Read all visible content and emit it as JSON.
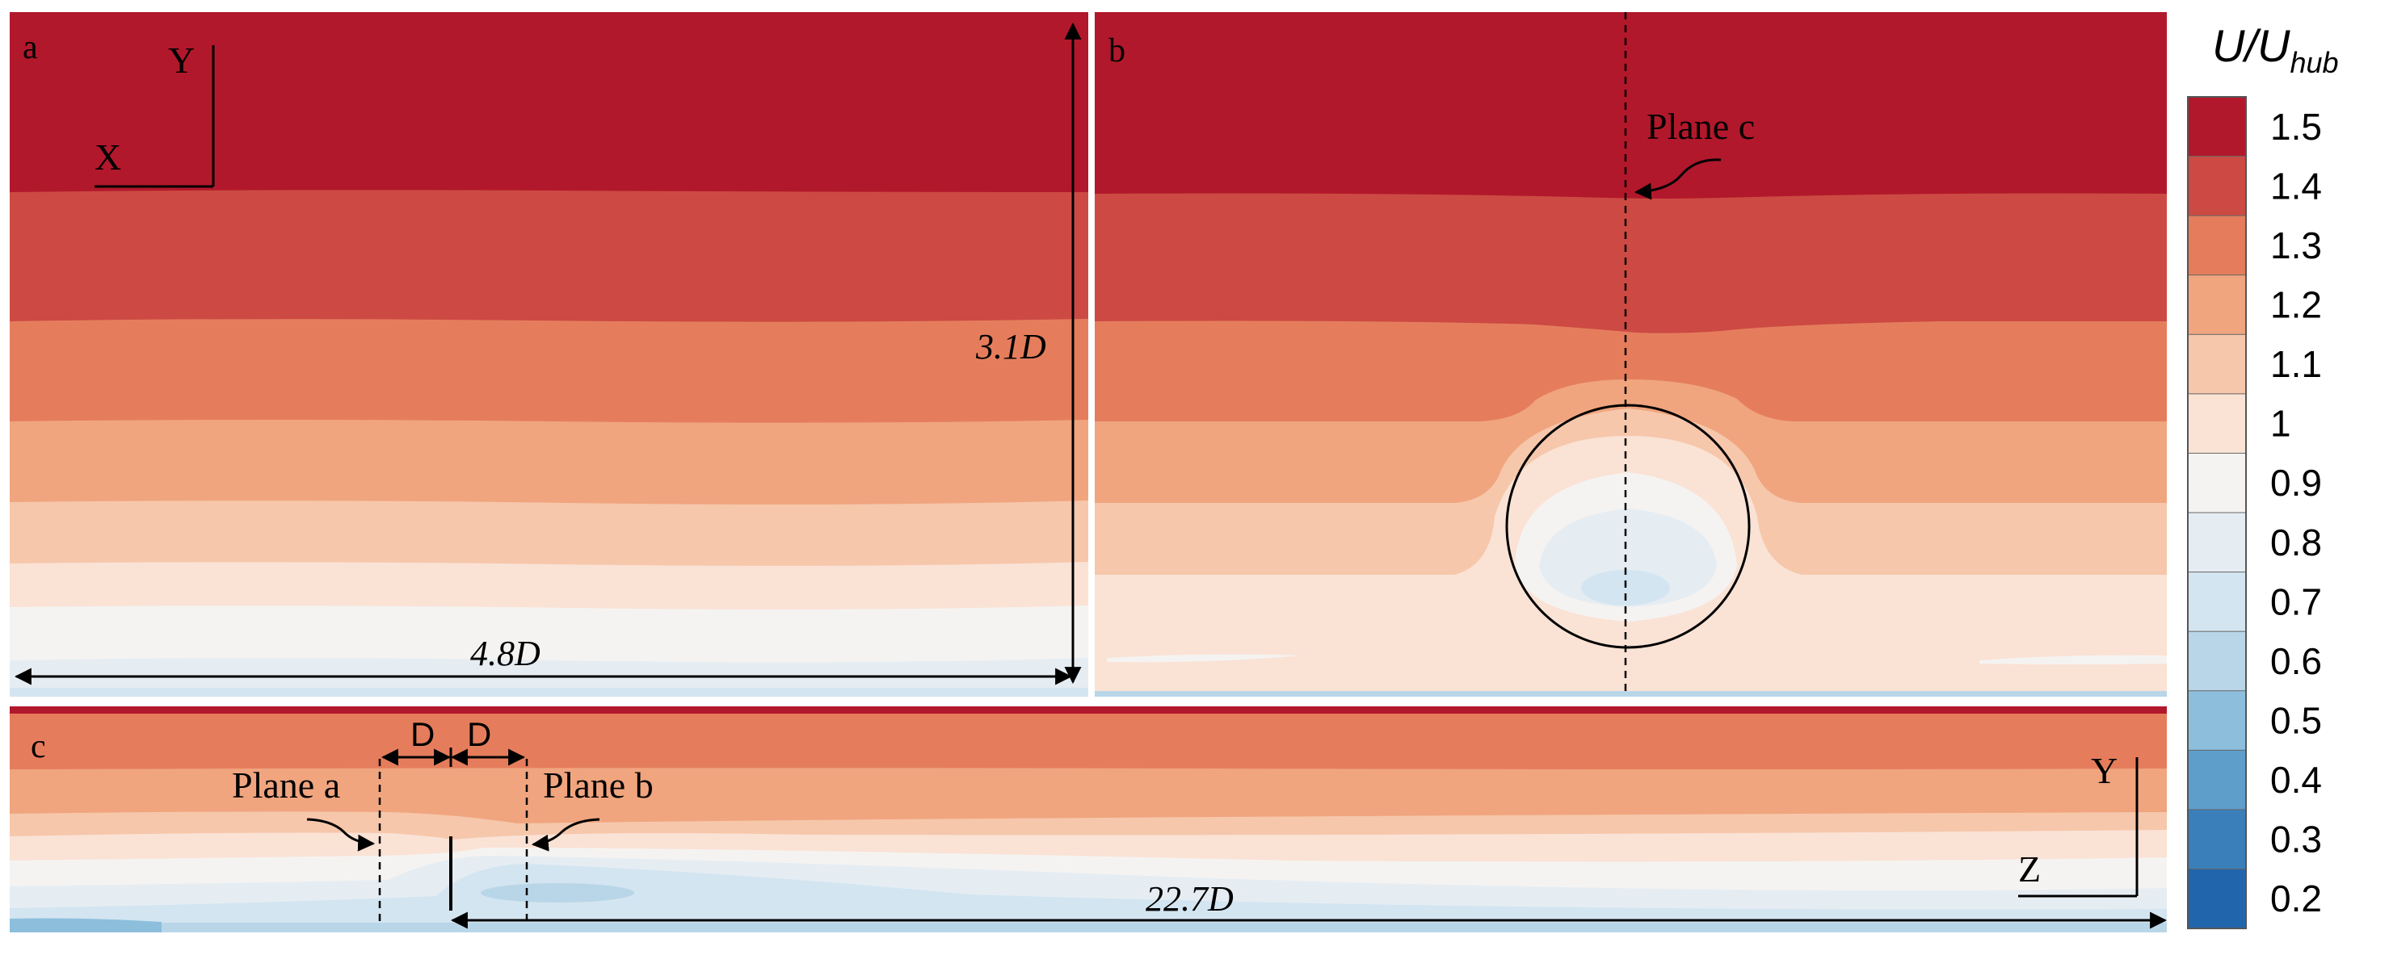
{
  "panels": {
    "a": {
      "letter": "a",
      "axis_vertical": "Y",
      "axis_horizontal": "X",
      "dim_height": "3.1D",
      "dim_width": "4.8D"
    },
    "b": {
      "letter": "b",
      "plane_label": "Plane c"
    },
    "c": {
      "letter": "c",
      "plane_a_label": "Plane a",
      "plane_b_label": "Plane b",
      "spacing_left": "D",
      "spacing_right": "D",
      "axis_vertical": "Y",
      "axis_horizontal": "Z",
      "dim_length": "22.7D"
    }
  },
  "colorbar": {
    "title_main": "U/U",
    "title_sub": "hub",
    "ticks": [
      "1.5",
      "1.4",
      "1.3",
      "1.2",
      "1.1",
      "1",
      "0.9",
      "0.8",
      "0.7",
      "0.6",
      "0.5",
      "0.4",
      "0.3",
      "0.2"
    ],
    "colors": [
      "#B2182B",
      "#CC4A43",
      "#E57D5C",
      "#F0A57F",
      "#F6C7AB",
      "#FAE2D5",
      "#F5F3F1",
      "#E5EDF3",
      "#D3E5F0",
      "#B9D6E8",
      "#8DBFDD",
      "#5E9ECB",
      "#3A7EBA",
      "#2166AC"
    ]
  },
  "styles": {
    "colors": {
      "band_1_5": "#B2182B",
      "band_1_4": "#CC4A43",
      "band_1_3": "#E57D5C",
      "band_1_2": "#F0A57F",
      "band_1_1": "#F6C7AB",
      "band_1_0": "#FAE2D5",
      "band_0_9": "#F5F3F1",
      "band_0_8": "#E5EDF3",
      "band_0_7": "#D3E5F0",
      "band_0_6": "#B9D6E8",
      "band_0_5": "#8DBFDD",
      "band_0_4": "#5E9ECB",
      "band_0_3": "#3A7EBA",
      "band_0_2": "#2166AC"
    }
  }
}
